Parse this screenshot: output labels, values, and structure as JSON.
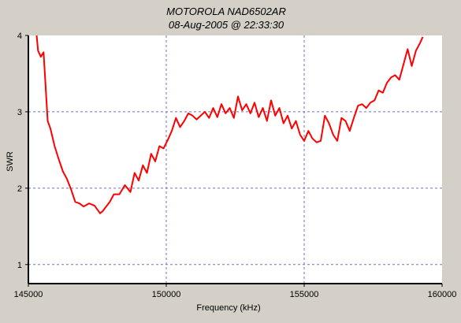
{
  "chart_data": {
    "type": "line",
    "title": "MOTOROLA NAD6502AR",
    "subtitle": "08-Aug-2005 @ 22:33:30",
    "xlabel": "Frequency (kHz)",
    "ylabel": "SWR",
    "xlim": [
      145000,
      160000
    ],
    "ylim": [
      0.75,
      4
    ],
    "x_ticks": [
      145000,
      150000,
      155000,
      160000
    ],
    "y_ticks": [
      1,
      2,
      3,
      4
    ],
    "x_tick_labels": [
      "145000",
      "150000",
      "155000",
      "160000"
    ],
    "y_tick_labels": [
      "1",
      "2",
      "3",
      "4"
    ],
    "grid": true,
    "colors": {
      "background": "#d4d0c8",
      "plot_background": "#ffffff",
      "line": "#ff0000",
      "grid": "#7070c0"
    },
    "series": [
      {
        "x": [
          145300,
          145350,
          145450,
          145550,
          145700,
          145800,
          145950,
          146100,
          146250,
          146400,
          146550,
          146700,
          146850,
          147000,
          147200,
          147400,
          147600,
          147700,
          147800,
          147950,
          148100,
          148300,
          148500,
          148700,
          148850,
          149000,
          149150,
          149300,
          149450,
          149600,
          149750,
          149900,
          150050,
          150200,
          150350,
          150500,
          150650,
          150800,
          150950,
          151100,
          151250,
          151400,
          151550,
          151700,
          151850,
          152000,
          152150,
          152300,
          152450,
          152600,
          152750,
          152900,
          153050,
          153200,
          153350,
          153500,
          153650,
          153800,
          153950,
          154100,
          154250,
          154400,
          154550,
          154700,
          154850,
          155000,
          155150,
          155300,
          155450,
          155600,
          155750,
          155900,
          156050,
          156200,
          156350,
          156500,
          156650,
          156800,
          156950,
          157100,
          157250,
          157400,
          157550,
          157700,
          157850,
          158000,
          158150,
          158300,
          158450,
          158600,
          158750,
          158900,
          159050,
          159200,
          159300
        ],
        "y": [
          4.0,
          3.8,
          3.72,
          3.78,
          2.88,
          2.78,
          2.55,
          2.38,
          2.22,
          2.12,
          1.98,
          1.82,
          1.8,
          1.76,
          1.8,
          1.77,
          1.67,
          1.7,
          1.75,
          1.82,
          1.92,
          1.92,
          2.04,
          1.95,
          2.2,
          2.1,
          2.3,
          2.2,
          2.45,
          2.35,
          2.55,
          2.52,
          2.63,
          2.75,
          2.92,
          2.8,
          2.88,
          2.98,
          2.95,
          2.9,
          2.95,
          3.0,
          2.92,
          3.05,
          2.93,
          3.1,
          2.98,
          3.05,
          2.92,
          3.2,
          3.02,
          3.1,
          2.98,
          3.12,
          2.93,
          3.05,
          2.88,
          3.15,
          2.95,
          3.05,
          2.85,
          2.95,
          2.78,
          2.88,
          2.7,
          2.62,
          2.75,
          2.65,
          2.6,
          2.62,
          2.95,
          2.85,
          2.7,
          2.62,
          2.92,
          2.88,
          2.75,
          2.92,
          3.08,
          3.1,
          3.05,
          3.12,
          3.15,
          3.28,
          3.25,
          3.38,
          3.45,
          3.48,
          3.42,
          3.62,
          3.82,
          3.6,
          3.8,
          3.9,
          3.98
        ]
      }
    ]
  }
}
